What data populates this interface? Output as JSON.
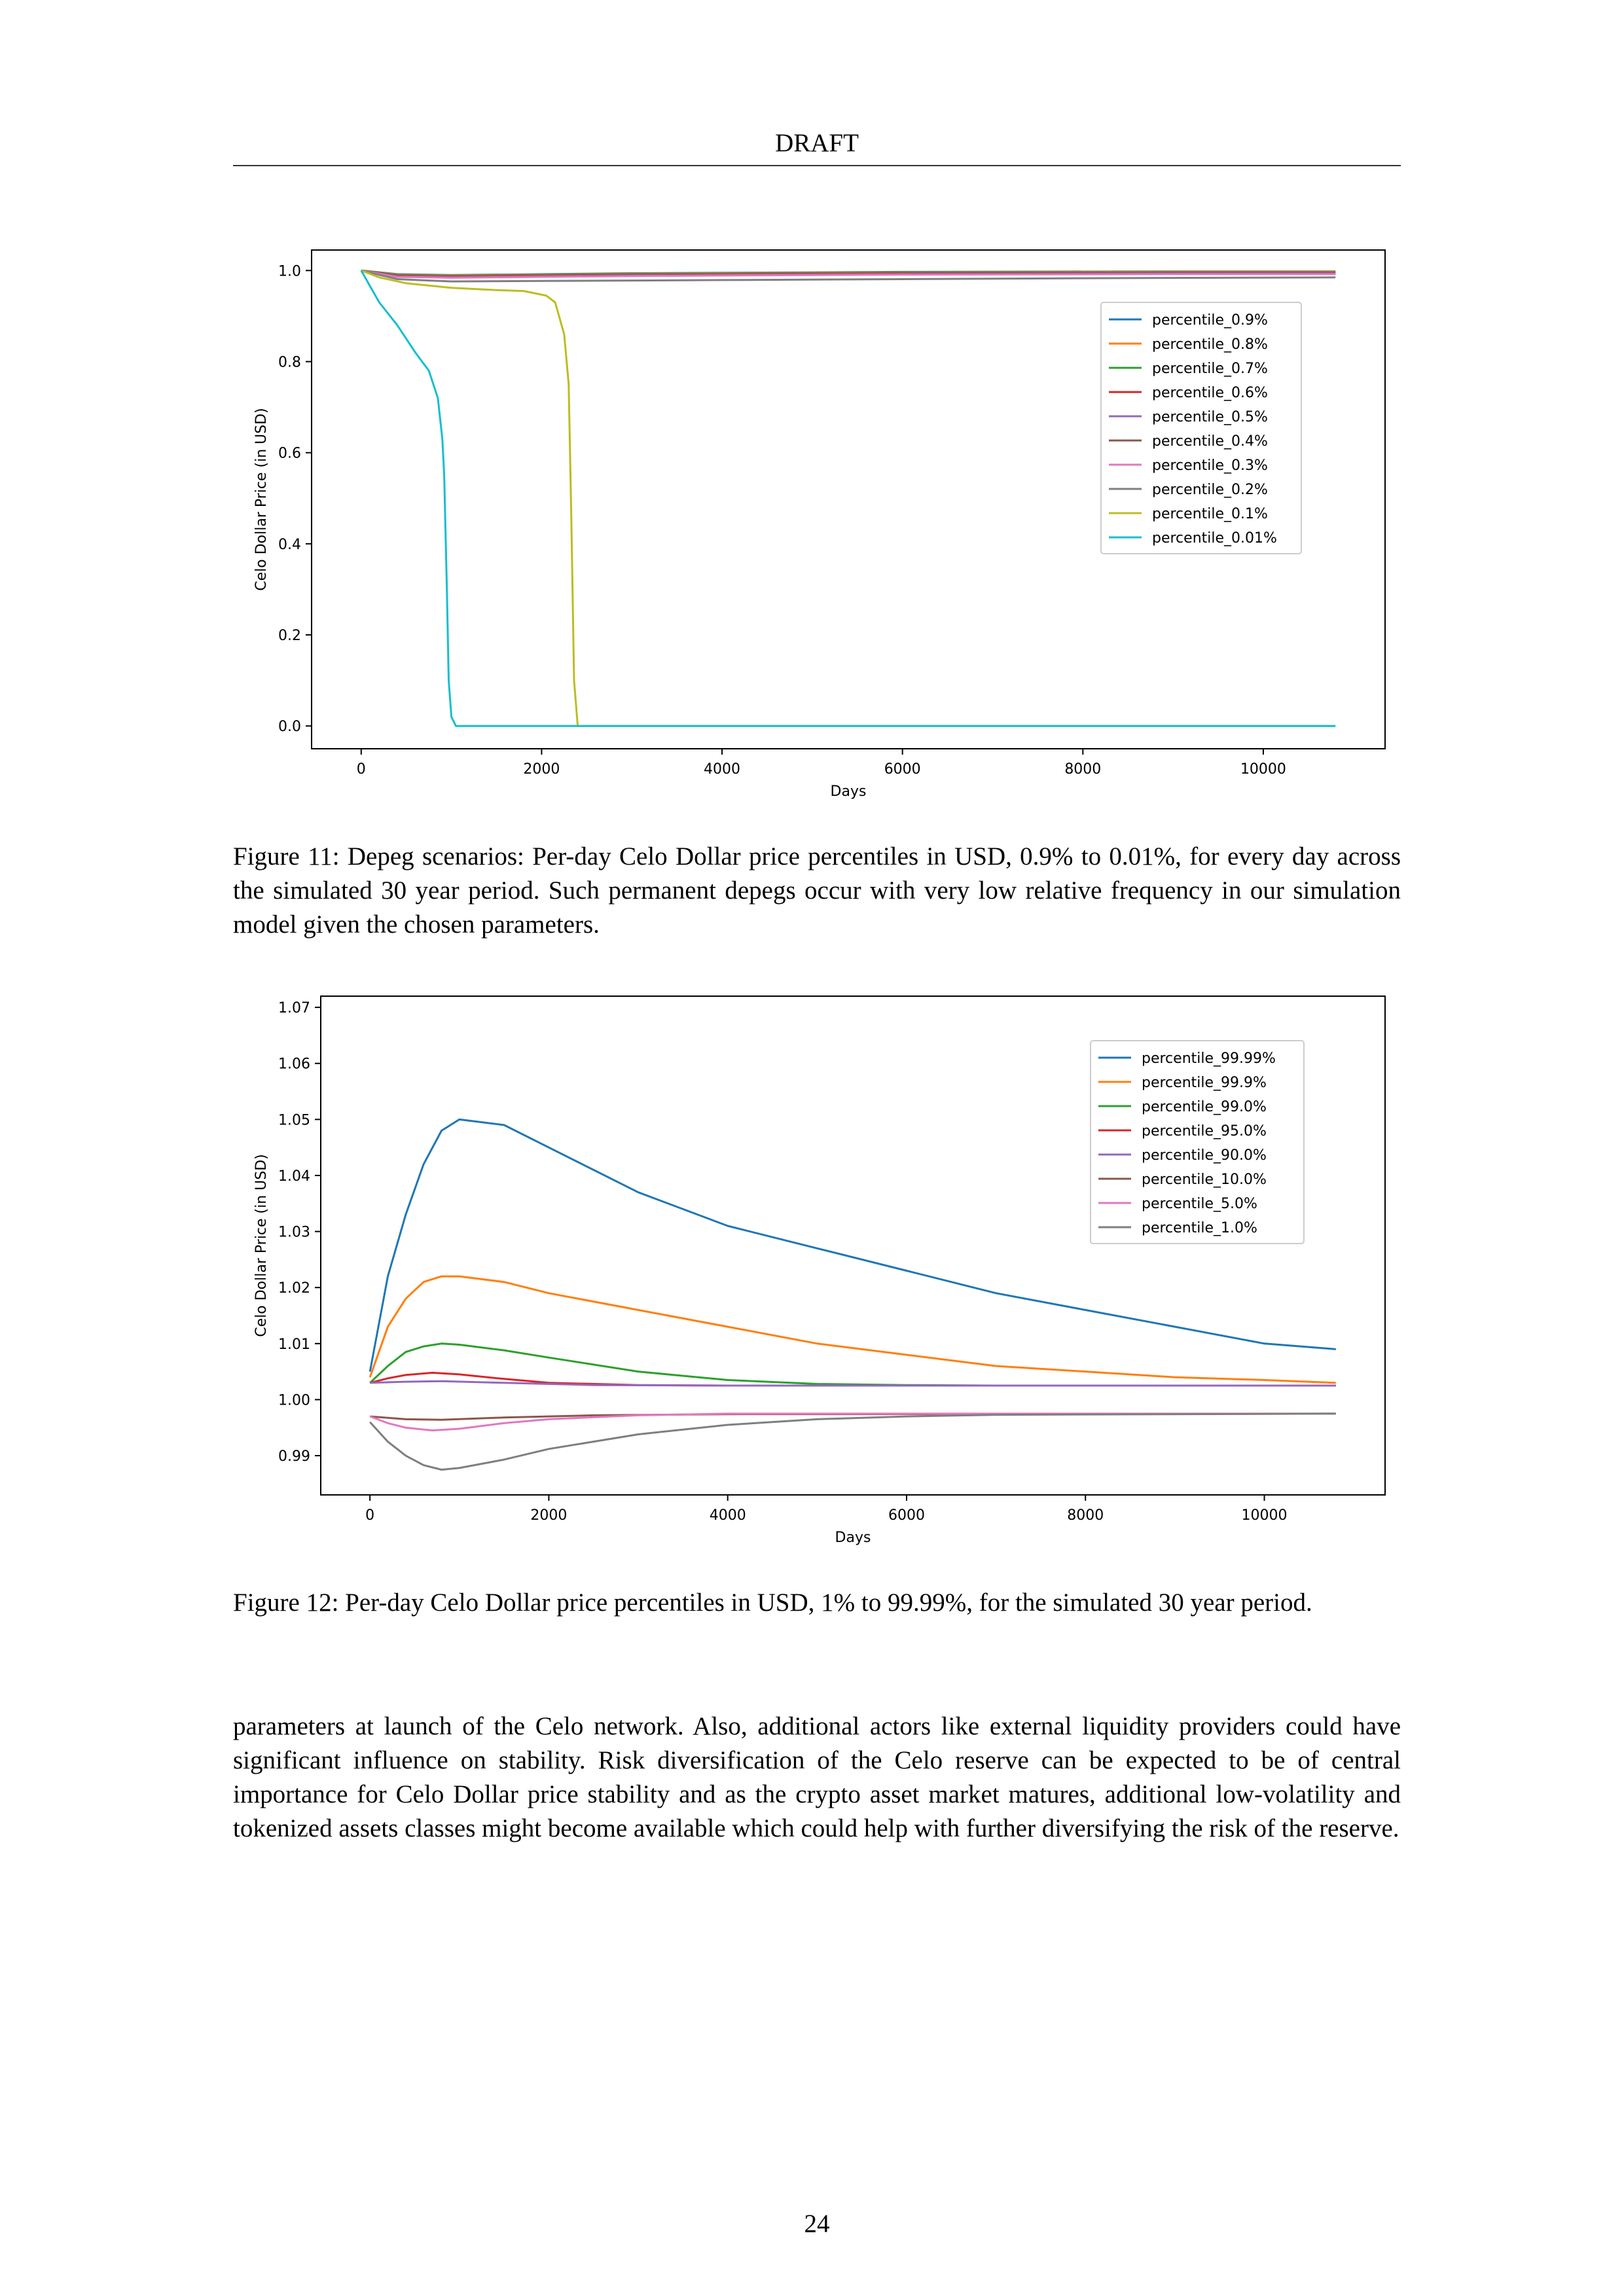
{
  "header": {
    "title": "DRAFT"
  },
  "figure11": {
    "caption": "Figure 11: Depeg scenarios: Per-day Celo Dollar price percentiles in USD, 0.9% to 0.01%, for every day across the simulated 30 year period. Such permanent depegs occur with very low relative frequency in our simulation model given the chosen parameters.",
    "chart_data": {
      "type": "line",
      "xlabel": "Days",
      "ylabel": "Celo Dollar Price (in USD)",
      "xlim": [
        -550,
        11350
      ],
      "ylim": [
        -0.05,
        1.045
      ],
      "xticks": [
        0,
        2000,
        4000,
        6000,
        8000,
        10000
      ],
      "xtick_labels": [
        "0",
        "2000",
        "4000",
        "6000",
        "8000",
        "10000"
      ],
      "yticks": [
        0.0,
        0.2,
        0.4,
        0.6,
        0.8,
        1.0
      ],
      "ytick_labels": [
        "0.0",
        "0.2",
        "0.4",
        "0.6",
        "0.8",
        "1.0"
      ],
      "legend_position": "upper right",
      "series": [
        {
          "name": "percentile_0.9%",
          "color": "#1f77b4",
          "x": [
            0,
            400,
            1000,
            3000,
            6000,
            9000,
            10800
          ],
          "y": [
            1.0,
            0.992,
            0.99,
            0.994,
            0.997,
            0.998,
            0.998
          ]
        },
        {
          "name": "percentile_0.8%",
          "color": "#ff7f0e",
          "x": [
            0,
            400,
            1000,
            3000,
            6000,
            9000,
            10800
          ],
          "y": [
            1.0,
            0.991,
            0.989,
            0.993,
            0.996,
            0.997,
            0.997
          ]
        },
        {
          "name": "percentile_0.7%",
          "color": "#2ca02c",
          "x": [
            0,
            400,
            1000,
            3000,
            6000,
            9000,
            10800
          ],
          "y": [
            1.0,
            0.99,
            0.988,
            0.992,
            0.995,
            0.996,
            0.996
          ]
        },
        {
          "name": "percentile_0.6%",
          "color": "#d62728",
          "x": [
            0,
            400,
            1000,
            3000,
            6000,
            9000,
            10800
          ],
          "y": [
            1.0,
            0.989,
            0.987,
            0.991,
            0.994,
            0.995,
            0.995
          ]
        },
        {
          "name": "percentile_0.5%",
          "color": "#9467bd",
          "x": [
            0,
            400,
            1000,
            3000,
            6000,
            9000,
            10800
          ],
          "y": [
            1.0,
            0.988,
            0.986,
            0.99,
            0.993,
            0.994,
            0.994
          ]
        },
        {
          "name": "percentile_0.4%",
          "color": "#8c564b",
          "x": [
            0,
            400,
            1000,
            3000,
            6000,
            9000,
            10800
          ],
          "y": [
            1.0,
            0.987,
            0.985,
            0.989,
            0.992,
            0.993,
            0.993
          ]
        },
        {
          "name": "percentile_0.3%",
          "color": "#e377c2",
          "x": [
            0,
            400,
            1000,
            3000,
            6000,
            9000,
            10800
          ],
          "y": [
            1.0,
            0.986,
            0.984,
            0.988,
            0.991,
            0.992,
            0.992
          ]
        },
        {
          "name": "percentile_0.2%",
          "color": "#7f7f7f",
          "x": [
            0,
            400,
            1000,
            2000,
            4000,
            6000,
            8000,
            10800
          ],
          "y": [
            1.0,
            0.981,
            0.976,
            0.977,
            0.979,
            0.981,
            0.983,
            0.985
          ]
        },
        {
          "name": "percentile_0.1%",
          "color": "#bcbd22",
          "x": [
            0,
            200,
            500,
            1000,
            1500,
            1800,
            2050,
            2150,
            2250,
            2300,
            2330,
            2360,
            2400,
            6000,
            10800
          ],
          "y": [
            1.0,
            0.985,
            0.972,
            0.962,
            0.957,
            0.955,
            0.945,
            0.93,
            0.86,
            0.75,
            0.45,
            0.1,
            0.0,
            0.0,
            0.0
          ]
        },
        {
          "name": "percentile_0.01%",
          "color": "#17becf",
          "x": [
            0,
            100,
            200,
            400,
            600,
            750,
            850,
            900,
            920,
            950,
            970,
            1000,
            1050,
            1100,
            6000,
            10800
          ],
          "y": [
            1.0,
            0.965,
            0.93,
            0.88,
            0.82,
            0.78,
            0.72,
            0.63,
            0.55,
            0.3,
            0.1,
            0.02,
            0.0,
            0.0,
            0.0,
            0.0
          ]
        }
      ]
    }
  },
  "figure12": {
    "caption": "Figure 12: Per-day Celo Dollar price percentiles in USD, 1% to 99.99%, for the simulated 30 year period.",
    "chart_data": {
      "type": "line",
      "xlabel": "Days",
      "ylabel": "Celo Dollar Price (in USD)",
      "xlim": [
        -550,
        11350
      ],
      "ylim": [
        0.983,
        1.072
      ],
      "xticks": [
        0,
        2000,
        4000,
        6000,
        8000,
        10000
      ],
      "xtick_labels": [
        "0",
        "2000",
        "4000",
        "6000",
        "8000",
        "10000"
      ],
      "yticks": [
        0.99,
        1.0,
        1.01,
        1.02,
        1.03,
        1.04,
        1.05,
        1.06,
        1.07
      ],
      "ytick_labels": [
        "0.99",
        "1.00",
        "1.01",
        "1.02",
        "1.03",
        "1.04",
        "1.05",
        "1.06",
        "1.07"
      ],
      "legend_position": "upper right",
      "series": [
        {
          "name": "percentile_99.99%",
          "color": "#1f77b4",
          "x": [
            0,
            200,
            400,
            600,
            800,
            1000,
            1500,
            2000,
            3000,
            4000,
            5000,
            6000,
            7000,
            8000,
            9000,
            10000,
            10800
          ],
          "y": [
            1.005,
            1.022,
            1.033,
            1.042,
            1.048,
            1.05,
            1.049,
            1.045,
            1.037,
            1.031,
            1.027,
            1.023,
            1.019,
            1.016,
            1.013,
            1.01,
            1.009
          ]
        },
        {
          "name": "percentile_99.9%",
          "color": "#ff7f0e",
          "x": [
            0,
            200,
            400,
            600,
            800,
            1000,
            1500,
            2000,
            3000,
            4000,
            5000,
            6000,
            7000,
            8000,
            9000,
            10000,
            10800
          ],
          "y": [
            1.004,
            1.013,
            1.018,
            1.021,
            1.022,
            1.022,
            1.021,
            1.019,
            1.016,
            1.013,
            1.01,
            1.008,
            1.006,
            1.005,
            1.004,
            1.0035,
            1.003
          ]
        },
        {
          "name": "percentile_99.0%",
          "color": "#2ca02c",
          "x": [
            0,
            200,
            400,
            600,
            800,
            1000,
            1500,
            2000,
            3000,
            4000,
            5000,
            6000,
            7000,
            10800
          ],
          "y": [
            1.003,
            1.006,
            1.0085,
            1.0095,
            1.01,
            1.0098,
            1.0088,
            1.0075,
            1.005,
            1.0035,
            1.0028,
            1.0026,
            1.0025,
            1.0025
          ]
        },
        {
          "name": "percentile_95.0%",
          "color": "#d62728",
          "x": [
            0,
            200,
            400,
            700,
            1000,
            1500,
            2000,
            3000,
            4000,
            10800
          ],
          "y": [
            1.003,
            1.0038,
            1.0044,
            1.0048,
            1.0045,
            1.0037,
            1.003,
            1.0026,
            1.0025,
            1.0025
          ]
        },
        {
          "name": "percentile_90.0%",
          "color": "#9467bd",
          "x": [
            0,
            400,
            800,
            1500,
            2500,
            4000,
            10800
          ],
          "y": [
            1.003,
            1.0032,
            1.0033,
            1.003,
            1.0026,
            1.0025,
            1.0025
          ]
        },
        {
          "name": "percentile_10.0%",
          "color": "#8c564b",
          "x": [
            0,
            400,
            800,
            1500,
            2500,
            4000,
            10800
          ],
          "y": [
            0.997,
            0.9965,
            0.9964,
            0.9968,
            0.9972,
            0.9974,
            0.9975
          ]
        },
        {
          "name": "percentile_5.0%",
          "color": "#e377c2",
          "x": [
            0,
            200,
            400,
            700,
            1000,
            1500,
            2000,
            3000,
            4000,
            10800
          ],
          "y": [
            0.997,
            0.9958,
            0.995,
            0.9945,
            0.9948,
            0.9958,
            0.9965,
            0.9972,
            0.9975,
            0.9975
          ]
        },
        {
          "name": "percentile_1.0%",
          "color": "#7f7f7f",
          "x": [
            0,
            200,
            400,
            600,
            800,
            1000,
            1500,
            2000,
            3000,
            4000,
            5000,
            6000,
            7000,
            10800
          ],
          "y": [
            0.996,
            0.9925,
            0.99,
            0.9883,
            0.9875,
            0.9878,
            0.9893,
            0.9912,
            0.9938,
            0.9955,
            0.9965,
            0.997,
            0.9973,
            0.9975
          ]
        }
      ]
    }
  },
  "body": {
    "paragraph": "parameters at launch of the Celo network. Also, additional actors like external liquidity providers could have significant influence on stability. Risk diversification of the Celo reserve can be expected to be of central importance for Celo Dollar price stability and as the crypto asset market matures, additional low-volatility and tokenized assets classes might become available which could help with further diversifying the risk of the reserve."
  },
  "footer": {
    "page_number": "24"
  }
}
